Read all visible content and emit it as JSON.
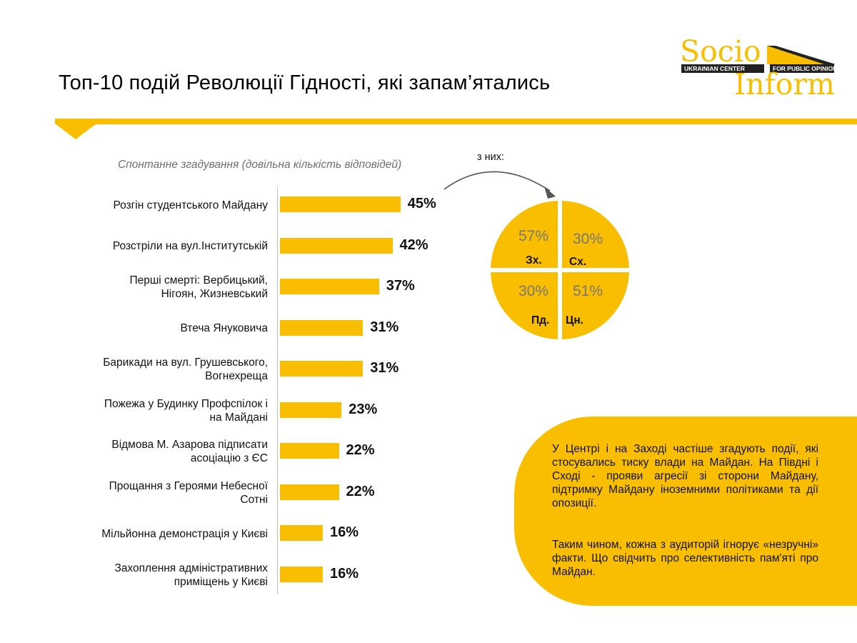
{
  "title": "Топ-10 подій Революції Гідності, які запам’ятались",
  "logo": {
    "word1": "Socio",
    "word2": "Inform",
    "band1": "UKRAINIAN CENTER",
    "band2": "FOR PUBLIC OPINION RESEARCH"
  },
  "subtitle": "Спонтанне згадування (довільна кількість відповідей)",
  "chart_data": [
    {
      "type": "bar",
      "orientation": "horizontal",
      "categories": [
        "Розгін студентського Майдану",
        "Розстріли на вул.Інститутській",
        "Перші смерті: Вербицький,\nНігоян, Жизневський",
        "Втеча Януковича",
        "Барикади на вул. Грушевського,\nВогнехреща",
        "Пожежа у Будинку Профспілок і\nна Майдані",
        "Відмова М. Азарова підписати\nасоціацію з ЄС",
        "Прощання з Героями Небесної\nСотні",
        "Мільйонна демонстрація у Києві",
        "Захоплення адміністративних\nприміщень у Києві"
      ],
      "values": [
        45,
        42,
        37,
        31,
        31,
        23,
        22,
        22,
        16,
        16
      ],
      "value_labels": [
        "45%",
        "42%",
        "37%",
        "31%",
        "31%",
        "23%",
        "22%",
        "22%",
        "16%",
        "16%"
      ],
      "bar_color": "#f9be00",
      "grid": false
    },
    {
      "type": "pie",
      "caption": "з них:",
      "quadrants": [
        {
          "label": "Зх.",
          "value": 57,
          "value_label": "57%"
        },
        {
          "label": "Сх.",
          "value": 30,
          "value_label": "30%"
        },
        {
          "label": "Пд.",
          "value": 30,
          "value_label": "30%"
        },
        {
          "label": "Цн.",
          "value": 51,
          "value_label": "51%"
        }
      ],
      "fill_color": "#f9be00"
    }
  ],
  "note": {
    "paragraph1": "У Центрі і на Заході частіше згадують події, які стосувались тиску влади на Майдан. На Півдні і Сході - прояви агресії зі сторони Майдану, підтримку Майдану іноземними політиками та дії опозиції.",
    "paragraph2": "Таким чином, кожна з аудиторій ігнорує «незручні» факти. Що свідчить про селективність пам'яті про Майдан."
  },
  "colors": {
    "accent": "#f9be00",
    "value_gray": "#777777"
  }
}
